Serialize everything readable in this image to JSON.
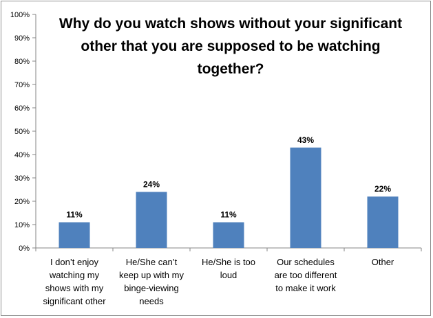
{
  "chart_data": {
    "type": "bar",
    "title": "Why do you watch shows without your significant other that you are supposed to be watching together?",
    "categories": [
      [
        "I don’t enjoy",
        "watching my",
        "shows with my",
        "significant other"
      ],
      [
        "He/She can’t",
        "keep up with my",
        "binge-viewing",
        "needs"
      ],
      [
        "He/She is too",
        "loud"
      ],
      [
        "Our schedules",
        "are too different",
        "to make it work"
      ],
      [
        "Other"
      ]
    ],
    "values": [
      11,
      24,
      11,
      43,
      22
    ],
    "data_labels": [
      "11%",
      "24%",
      "11%",
      "43%",
      "22%"
    ],
    "y_ticks": [
      "0%",
      "10%",
      "20%",
      "30%",
      "40%",
      "50%",
      "60%",
      "70%",
      "80%",
      "90%",
      "100%"
    ],
    "ylim": [
      0,
      100
    ],
    "grid": false,
    "legend": "none",
    "bar_color": "#4f81bd"
  }
}
